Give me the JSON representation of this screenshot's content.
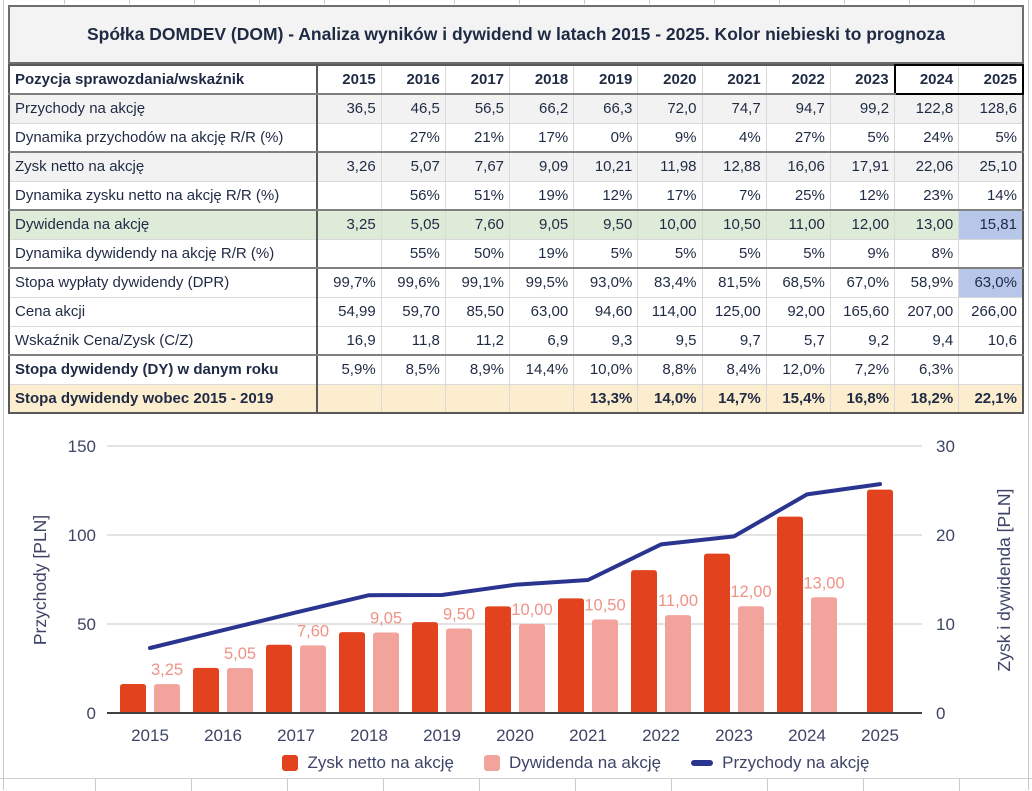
{
  "title": "Spółka DOMDEV (DOM) - Analiza wyników i dywidend w latach 2015 - 2025. Kolor niebieski to prognoza",
  "table": {
    "header": {
      "label": "Pozycja sprawozdania/wskaźnik",
      "years": [
        "2015",
        "2016",
        "2017",
        "2018",
        "2019",
        "2020",
        "2021",
        "2022",
        "2023",
        "2024",
        "2025"
      ],
      "forecast_box_years": [
        "2024",
        "2025"
      ]
    },
    "rows": [
      {
        "label": "Przychody na akcję",
        "values": [
          "36,5",
          "46,5",
          "56,5",
          "66,2",
          "66,3",
          "72,0",
          "74,7",
          "94,7",
          "99,2",
          "122,8",
          "128,6"
        ],
        "bg": "gray"
      },
      {
        "label": "Dynamika przychodów na akcję R/R (%)",
        "values": [
          "",
          "27%",
          "21%",
          "17%",
          "0%",
          "9%",
          "4%",
          "27%",
          "5%",
          "24%",
          "5%"
        ],
        "bg": "white",
        "group_end": true
      },
      {
        "label": "Zysk netto na akcję",
        "values": [
          "3,26",
          "5,07",
          "7,67",
          "9,09",
          "10,21",
          "11,98",
          "12,88",
          "16,06",
          "17,91",
          "22,06",
          "25,10"
        ],
        "bg": "gray"
      },
      {
        "label": "Dynamika zysku netto na akcję R/R (%)",
        "values": [
          "",
          "56%",
          "51%",
          "19%",
          "12%",
          "17%",
          "7%",
          "25%",
          "12%",
          "23%",
          "14%"
        ],
        "bg": "white",
        "group_end": true
      },
      {
        "label": "Dywidenda na akcję",
        "values": [
          "3,25",
          "5,05",
          "7,60",
          "9,05",
          "9,50",
          "10,00",
          "10,50",
          "11,00",
          "12,00",
          "13,00",
          "15,81"
        ],
        "bg": "green",
        "forecast_cells": [
          10
        ]
      },
      {
        "label": "Dynamika dywidendy na akcję R/R (%)",
        "values": [
          "",
          "55%",
          "50%",
          "19%",
          "5%",
          "5%",
          "5%",
          "5%",
          "9%",
          "8%",
          ""
        ],
        "bg": "white",
        "group_end": true
      },
      {
        "label": "Stopa wypłaty dywidendy (DPR)",
        "values": [
          "99,7%",
          "99,6%",
          "99,1%",
          "99,5%",
          "93,0%",
          "83,4%",
          "81,5%",
          "68,5%",
          "67,0%",
          "58,9%",
          "63,0%"
        ],
        "bg": "white",
        "forecast_cells": [
          10
        ]
      },
      {
        "label": "Cena akcji",
        "values": [
          "54,99",
          "59,70",
          "85,50",
          "63,00",
          "94,60",
          "114,00",
          "125,00",
          "92,00",
          "165,60",
          "207,00",
          "266,00"
        ],
        "bg": "white"
      },
      {
        "label": "Wskaźnik Cena/Zysk (C/Z)",
        "values": [
          "16,9",
          "11,8",
          "11,2",
          "6,9",
          "9,3",
          "9,5",
          "9,7",
          "5,7",
          "9,2",
          "9,4",
          "10,6"
        ],
        "bg": "white",
        "group_end": true
      },
      {
        "label": "Stopa dywidendy (DY) w danym roku",
        "values": [
          "5,9%",
          "8,5%",
          "8,9%",
          "14,4%",
          "10,0%",
          "8,8%",
          "8,4%",
          "12,0%",
          "7,2%",
          "6,3%",
          ""
        ],
        "bg": "white",
        "bold_label": true
      },
      {
        "label": "Stopa dywidendy wobec 2015 - 2019",
        "values": [
          "",
          "",
          "",
          "",
          "13,3%",
          "14,0%",
          "14,7%",
          "15,4%",
          "16,8%",
          "18,2%",
          "22,1%"
        ],
        "bg": "tan",
        "bold_label": true,
        "bold_values": true
      }
    ],
    "forecast_color": "#B7C7E9",
    "highlight_green": "#DEEBD8",
    "highlight_tan": "#FCEDCF"
  },
  "chart_data": {
    "type": "combo",
    "categories": [
      "2015",
      "2016",
      "2017",
      "2018",
      "2019",
      "2020",
      "2021",
      "2022",
      "2023",
      "2024",
      "2025"
    ],
    "series": [
      {
        "name": "Zysk netto na akcję",
        "type": "bar",
        "axis": "right",
        "color": "#E2431E",
        "values": [
          3.26,
          5.07,
          7.67,
          9.09,
          10.21,
          11.98,
          12.88,
          16.06,
          17.91,
          22.06,
          25.1
        ]
      },
      {
        "name": "Dywidenda na akcję",
        "type": "bar",
        "axis": "right",
        "color": "#F2A39C",
        "values": [
          3.25,
          5.05,
          7.6,
          9.05,
          9.5,
          10.0,
          10.5,
          11.0,
          12.0,
          13.0,
          null
        ],
        "data_labels": [
          "3,25",
          "5,05",
          "7,60",
          "9,05",
          "9,50",
          "10,00",
          "10,50",
          "11,00",
          "12,00",
          "13,00",
          ""
        ]
      },
      {
        "name": "Przychody na akcję",
        "type": "line",
        "axis": "left",
        "color": "#2A3590",
        "values": [
          36.5,
          46.5,
          56.5,
          66.2,
          66.3,
          72.0,
          74.7,
          94.7,
          99.2,
          122.8,
          128.6
        ]
      }
    ],
    "left_axis": {
      "title": "Przychody [PLN]",
      "ticks": [
        0,
        50,
        100,
        150
      ],
      "range": [
        0,
        150
      ]
    },
    "right_axis": {
      "title": "Zysk i dywidenda [PLN]",
      "ticks": [
        0,
        10,
        20,
        30
      ],
      "range": [
        0,
        30
      ]
    },
    "grid": true,
    "legend_position": "bottom",
    "data_label_color": "#EF9387"
  }
}
